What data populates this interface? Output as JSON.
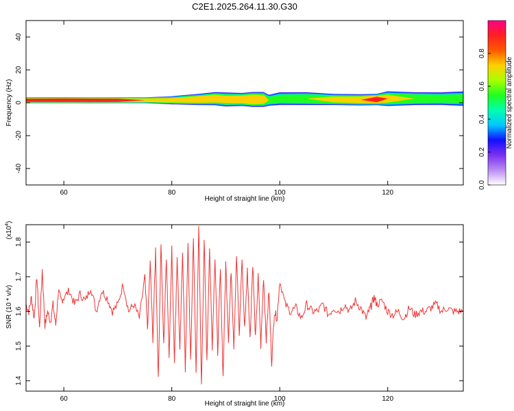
{
  "title": "C2E1.2025.264.11.30.G30",
  "chart_data": [
    {
      "type": "heatmap",
      "xlabel": "Height of straight line (km)",
      "ylabel": "Frequency (Hz)",
      "xlim": [
        53,
        134
      ],
      "ylim": [
        -50,
        50
      ],
      "x_ticks": [
        60,
        80,
        100,
        120
      ],
      "y_ticks": [
        40,
        20,
        0,
        -20,
        -40
      ],
      "band": {
        "x": [
          53,
          60,
          70,
          75,
          80,
          85,
          88,
          90,
          93,
          95,
          97,
          98,
          100,
          105,
          110,
          115,
          118,
          120,
          125,
          130,
          134
        ],
        "center_hz": [
          1.5,
          1.5,
          1.5,
          1.5,
          1.5,
          2,
          2.5,
          2,
          2,
          2,
          2,
          1.5,
          2.5,
          2.5,
          2,
          1.8,
          2,
          2.5,
          2.5,
          2.5,
          2.5
        ],
        "half_width_hz": [
          1.5,
          1.5,
          1.5,
          1.5,
          2.2,
          3,
          3.5,
          3.8,
          3.5,
          4,
          4,
          3,
          3.5,
          3.5,
          3,
          3,
          3,
          4,
          3.5,
          3.5,
          4
        ],
        "peak_amplitude": [
          0.9,
          0.95,
          0.9,
          0.8,
          0.7,
          0.75,
          0.75,
          0.7,
          0.75,
          0.8,
          0.75,
          0.6,
          0.6,
          0.65,
          0.7,
          0.75,
          0.85,
          0.7,
          0.65,
          0.6,
          0.6
        ]
      }
    },
    {
      "type": "line",
      "xlabel": "Height of straight line (km)",
      "ylabel": "SNR (10 * v/v)",
      "exponent_label": "(x10",
      "exponent_power": "4",
      "exponent_close": ")",
      "xlim": [
        53,
        134
      ],
      "ylim": [
        1.37,
        1.85
      ],
      "x_ticks": [
        60,
        80,
        100,
        120
      ],
      "y_ticks": [
        1.4,
        1.5,
        1.6,
        1.7,
        1.8
      ],
      "color": "#ee3333",
      "series": [
        {
          "name": "SNR",
          "x": [
            53,
            53.5,
            54,
            54.5,
            55,
            55.5,
            56,
            56.5,
            57,
            57.5,
            58,
            58.5,
            59,
            59.5,
            60,
            61,
            62,
            63,
            64,
            65,
            66,
            67,
            68,
            69,
            70,
            71,
            72,
            73,
            74,
            75,
            75.5,
            76,
            76.5,
            77,
            77.5,
            78,
            78.5,
            79,
            79.5,
            80,
            80.5,
            81,
            81.5,
            82,
            82.5,
            83,
            83.5,
            84,
            84.5,
            85,
            85.5,
            86,
            86.5,
            87,
            87.5,
            88,
            88.5,
            89,
            89.5,
            90,
            90.5,
            91,
            91.5,
            92,
            92.5,
            93,
            93.5,
            94,
            94.5,
            95,
            95.5,
            96,
            96.5,
            97,
            97.5,
            98,
            98.5,
            99,
            99.5,
            100,
            101,
            102,
            103,
            104,
            105,
            106,
            107,
            108,
            109,
            110,
            111,
            112,
            113,
            114,
            115,
            116,
            116.5,
            117,
            117.5,
            118,
            119,
            120,
            121,
            122,
            123,
            124,
            125,
            126,
            127,
            128,
            129,
            130,
            131,
            132,
            133,
            134
          ],
          "values": [
            1.62,
            1.6,
            1.64,
            1.58,
            1.7,
            1.55,
            1.72,
            1.56,
            1.6,
            1.57,
            1.62,
            1.56,
            1.66,
            1.63,
            1.64,
            1.66,
            1.62,
            1.65,
            1.63,
            1.67,
            1.6,
            1.66,
            1.64,
            1.6,
            1.62,
            1.68,
            1.6,
            1.62,
            1.58,
            1.7,
            1.55,
            1.74,
            1.52,
            1.78,
            1.4,
            1.8,
            1.5,
            1.76,
            1.47,
            1.78,
            1.46,
            1.76,
            1.48,
            1.78,
            1.43,
            1.79,
            1.45,
            1.82,
            1.42,
            1.84,
            1.38,
            1.81,
            1.46,
            1.78,
            1.5,
            1.76,
            1.48,
            1.72,
            1.41,
            1.74,
            1.52,
            1.72,
            1.5,
            1.76,
            1.53,
            1.75,
            1.55,
            1.72,
            1.52,
            1.74,
            1.52,
            1.7,
            1.5,
            1.7,
            1.52,
            1.66,
            1.45,
            1.6,
            1.58,
            1.69,
            1.62,
            1.6,
            1.61,
            1.58,
            1.62,
            1.6,
            1.6,
            1.62,
            1.59,
            1.61,
            1.6,
            1.62,
            1.6,
            1.63,
            1.61,
            1.58,
            1.6,
            1.62,
            1.64,
            1.62,
            1.63,
            1.6,
            1.59,
            1.6,
            1.58,
            1.61,
            1.59,
            1.6,
            1.6,
            1.61,
            1.62,
            1.6,
            1.61,
            1.6,
            1.6,
            1.6
          ]
        }
      ]
    }
  ],
  "colorbar": {
    "label": "Normalized spectral amplitude",
    "ticks": [
      "0.0",
      "0.2",
      "0.4",
      "0.6",
      "0.8"
    ],
    "colors": [
      "#ffffff",
      "#b98cf2",
      "#7b2ff0",
      "#1010ff",
      "#00c8ff",
      "#00ffb0",
      "#20ff20",
      "#a8ff00",
      "#ffd000",
      "#ff5a00",
      "#ff2020",
      "#ff0088"
    ]
  }
}
